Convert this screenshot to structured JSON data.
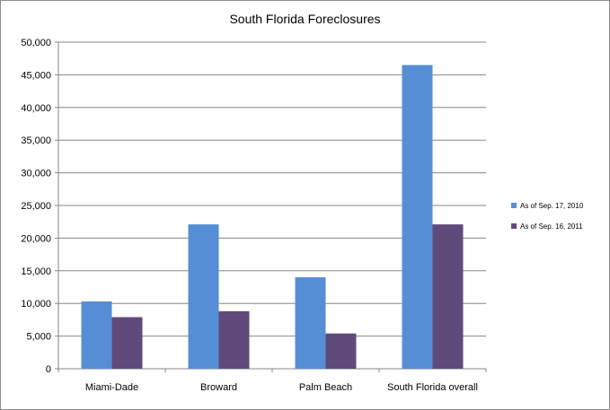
{
  "chart_data": {
    "type": "bar",
    "title": "South  Florida Foreclosures",
    "categories": [
      "Miami-Dade",
      "Broward",
      "Palm Beach",
      "South Florida overall"
    ],
    "series": [
      {
        "name": "As of Sep. 17, 2010",
        "color": "#558ed5",
        "values": [
          10300,
          22100,
          14000,
          46500
        ]
      },
      {
        "name": "As of Sep. 16, 2011",
        "color": "#604a7b",
        "values": [
          7900,
          8800,
          5400,
          22100
        ]
      }
    ],
    "ylim": [
      0,
      50000
    ],
    "yticks": [
      0,
      5000,
      10000,
      15000,
      20000,
      25000,
      30000,
      35000,
      40000,
      45000,
      50000
    ],
    "ytick_labels": [
      "0",
      "5,000",
      "10,000",
      "15,000",
      "20,000",
      "25,000",
      "30,000",
      "35,000",
      "40,000",
      "45,000",
      "50,000"
    ],
    "grid": true,
    "legend": "right"
  }
}
